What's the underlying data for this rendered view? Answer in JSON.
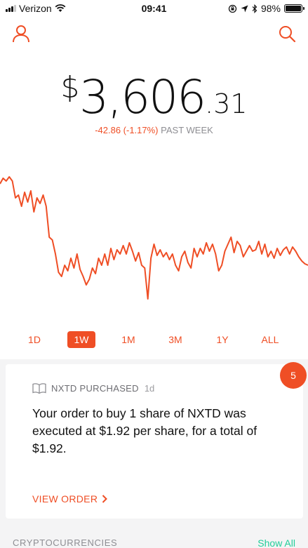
{
  "status_bar": {
    "carrier": "Verizon",
    "time": "09:41",
    "battery": "98%",
    "battery_level": 0.98
  },
  "header": {
    "left_icon": "account-icon",
    "right_icon": "search-icon"
  },
  "portfolio": {
    "currency": "$",
    "value_main": "3,606",
    "value_cents": ".31",
    "change": "-42.86 (-1.17%)",
    "period": "PAST WEEK"
  },
  "chart_data": {
    "type": "line",
    "color": "#ef4e25",
    "x_range": [
      0,
      100
    ],
    "y_range": [
      0,
      100
    ],
    "values": [
      [
        0,
        88
      ],
      [
        1,
        92
      ],
      [
        2,
        90
      ],
      [
        3,
        93
      ],
      [
        4,
        90
      ],
      [
        5,
        78
      ],
      [
        6,
        80
      ],
      [
        7,
        72
      ],
      [
        8,
        82
      ],
      [
        9,
        75
      ],
      [
        10,
        83
      ],
      [
        11,
        68
      ],
      [
        12,
        78
      ],
      [
        13,
        74
      ],
      [
        14,
        80
      ],
      [
        15,
        72
      ],
      [
        16,
        50
      ],
      [
        17,
        48
      ],
      [
        18,
        38
      ],
      [
        19,
        25
      ],
      [
        20,
        22
      ],
      [
        21,
        30
      ],
      [
        22,
        26
      ],
      [
        23,
        35
      ],
      [
        24,
        28
      ],
      [
        25,
        38
      ],
      [
        26,
        27
      ],
      [
        27,
        22
      ],
      [
        28,
        16
      ],
      [
        29,
        20
      ],
      [
        30,
        28
      ],
      [
        31,
        24
      ],
      [
        32,
        35
      ],
      [
        33,
        30
      ],
      [
        34,
        38
      ],
      [
        35,
        30
      ],
      [
        36,
        42
      ],
      [
        37,
        34
      ],
      [
        38,
        41
      ],
      [
        39,
        38
      ],
      [
        40,
        44
      ],
      [
        41,
        38
      ],
      [
        42,
        46
      ],
      [
        43,
        40
      ],
      [
        44,
        33
      ],
      [
        45,
        39
      ],
      [
        46,
        30
      ],
      [
        47,
        28
      ],
      [
        48,
        6
      ],
      [
        49,
        35
      ],
      [
        50,
        45
      ],
      [
        51,
        37
      ],
      [
        52,
        41
      ],
      [
        53,
        36
      ],
      [
        54,
        39
      ],
      [
        55,
        34
      ],
      [
        56,
        38
      ],
      [
        57,
        30
      ],
      [
        58,
        26
      ],
      [
        59,
        36
      ],
      [
        60,
        40
      ],
      [
        61,
        32
      ],
      [
        62,
        28
      ],
      [
        63,
        42
      ],
      [
        64,
        36
      ],
      [
        65,
        42
      ],
      [
        66,
        38
      ],
      [
        67,
        46
      ],
      [
        68,
        40
      ],
      [
        69,
        45
      ],
      [
        70,
        38
      ],
      [
        71,
        26
      ],
      [
        72,
        30
      ],
      [
        73,
        40
      ],
      [
        74,
        45
      ],
      [
        75,
        50
      ],
      [
        76,
        39
      ],
      [
        77,
        47
      ],
      [
        78,
        44
      ],
      [
        79,
        36
      ],
      [
        80,
        40
      ],
      [
        81,
        44
      ],
      [
        82,
        40
      ],
      [
        83,
        41
      ],
      [
        84,
        47
      ],
      [
        85,
        38
      ],
      [
        86,
        45
      ],
      [
        87,
        36
      ],
      [
        88,
        40
      ],
      [
        89,
        35
      ],
      [
        90,
        42
      ],
      [
        91,
        37
      ],
      [
        92,
        41
      ],
      [
        93,
        43
      ],
      [
        94,
        38
      ],
      [
        95,
        43
      ],
      [
        96,
        40
      ],
      [
        97,
        36
      ],
      [
        98,
        33
      ],
      [
        99,
        31
      ],
      [
        100,
        30
      ]
    ]
  },
  "ranges": [
    {
      "label": "1D",
      "active": false
    },
    {
      "label": "1W",
      "active": true
    },
    {
      "label": "1M",
      "active": false
    },
    {
      "label": "3M",
      "active": false
    },
    {
      "label": "1Y",
      "active": false
    },
    {
      "label": "ALL",
      "active": false
    }
  ],
  "notification": {
    "badge_count": "5",
    "icon": "book-icon",
    "title": "NXTD PURCHASED",
    "ago": "1d",
    "body": "Your order to buy 1 share of NXTD was executed at $1.92 per share, for a total of $1.92.",
    "link": "VIEW ORDER"
  },
  "footer": {
    "section_title": "CRYPTOCURRENCIES",
    "show_all": "Show All"
  }
}
